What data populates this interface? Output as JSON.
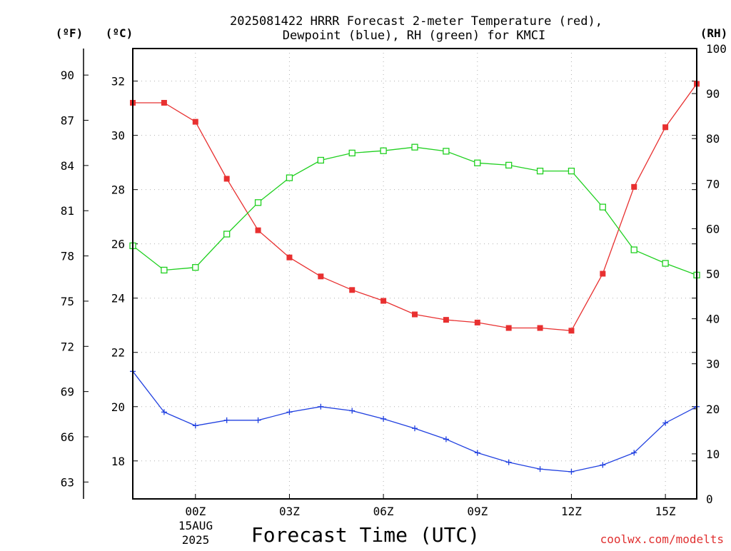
{
  "chart_data": {
    "type": "line",
    "title_line1": "2025081422 HRRR Forecast 2-meter Temperature (red),",
    "title_line2": "Dewpoint (blue), RH (green) for KMCI",
    "xlabel": "Forecast Time (UTC)",
    "watermark": "coolwx.com/modelts",
    "axis_unit_f": "(ºF)",
    "axis_unit_c": "(ºC)",
    "axis_unit_rh": "(RH)",
    "x_hours": [
      -2,
      -1,
      0,
      1,
      2,
      3,
      4,
      5,
      6,
      7,
      8,
      9,
      10,
      11,
      12,
      13,
      14,
      15,
      16
    ],
    "x_ticks": [
      {
        "hour": 0,
        "label": "00Z"
      },
      {
        "hour": 3,
        "label": "03Z"
      },
      {
        "hour": 6,
        "label": "06Z"
      },
      {
        "hour": 9,
        "label": "09Z"
      },
      {
        "hour": 12,
        "label": "12Z"
      },
      {
        "hour": 15,
        "label": "15Z"
      }
    ],
    "x_date_line1": "15AUG",
    "x_date_line2": "2025",
    "xlim": [
      -2,
      16
    ],
    "ylim_c": [
      16.6,
      33.2
    ],
    "ylim_rh": [
      0,
      100
    ],
    "y_ticks_c": [
      "18",
      "20",
      "22",
      "24",
      "26",
      "28",
      "30",
      "32"
    ],
    "y_ticks_f": [
      "63",
      "66",
      "69",
      "72",
      "75",
      "78",
      "81",
      "84",
      "87",
      "90"
    ],
    "y_ticks_rh": [
      "0",
      "10",
      "20",
      "30",
      "40",
      "50",
      "60",
      "70",
      "80",
      "90",
      "100"
    ],
    "grid": true,
    "series": [
      {
        "name": "2-meter Temperature",
        "units": "°C",
        "axis": "celsius",
        "color": "#e83030",
        "marker": "filled-square",
        "values": [
          31.2,
          31.2,
          30.5,
          28.4,
          26.5,
          25.5,
          24.8,
          24.3,
          23.9,
          23.4,
          23.2,
          23.1,
          22.9,
          22.9,
          22.8,
          24.9,
          28.1,
          30.3,
          31.9
        ]
      },
      {
        "name": "Dewpoint",
        "units": "°C",
        "axis": "celsius",
        "color": "#2040e0",
        "marker": "plus",
        "values": [
          21.3,
          19.8,
          19.3,
          19.5,
          19.5,
          19.8,
          20.0,
          19.85,
          19.55,
          19.2,
          18.8,
          18.3,
          17.95,
          17.7,
          17.6,
          17.85,
          18.3,
          19.4,
          20.0
        ]
      },
      {
        "name": "RH",
        "units": "%",
        "axis": "rh",
        "color": "#20d020",
        "marker": "open-square",
        "values": [
          56.2,
          50.8,
          51.4,
          58.8,
          65.8,
          71.3,
          75.2,
          76.8,
          77.3,
          78.1,
          77.2,
          74.6,
          74.1,
          72.8,
          72.8,
          64.8,
          55.3,
          52.3,
          49.7
        ]
      }
    ]
  }
}
